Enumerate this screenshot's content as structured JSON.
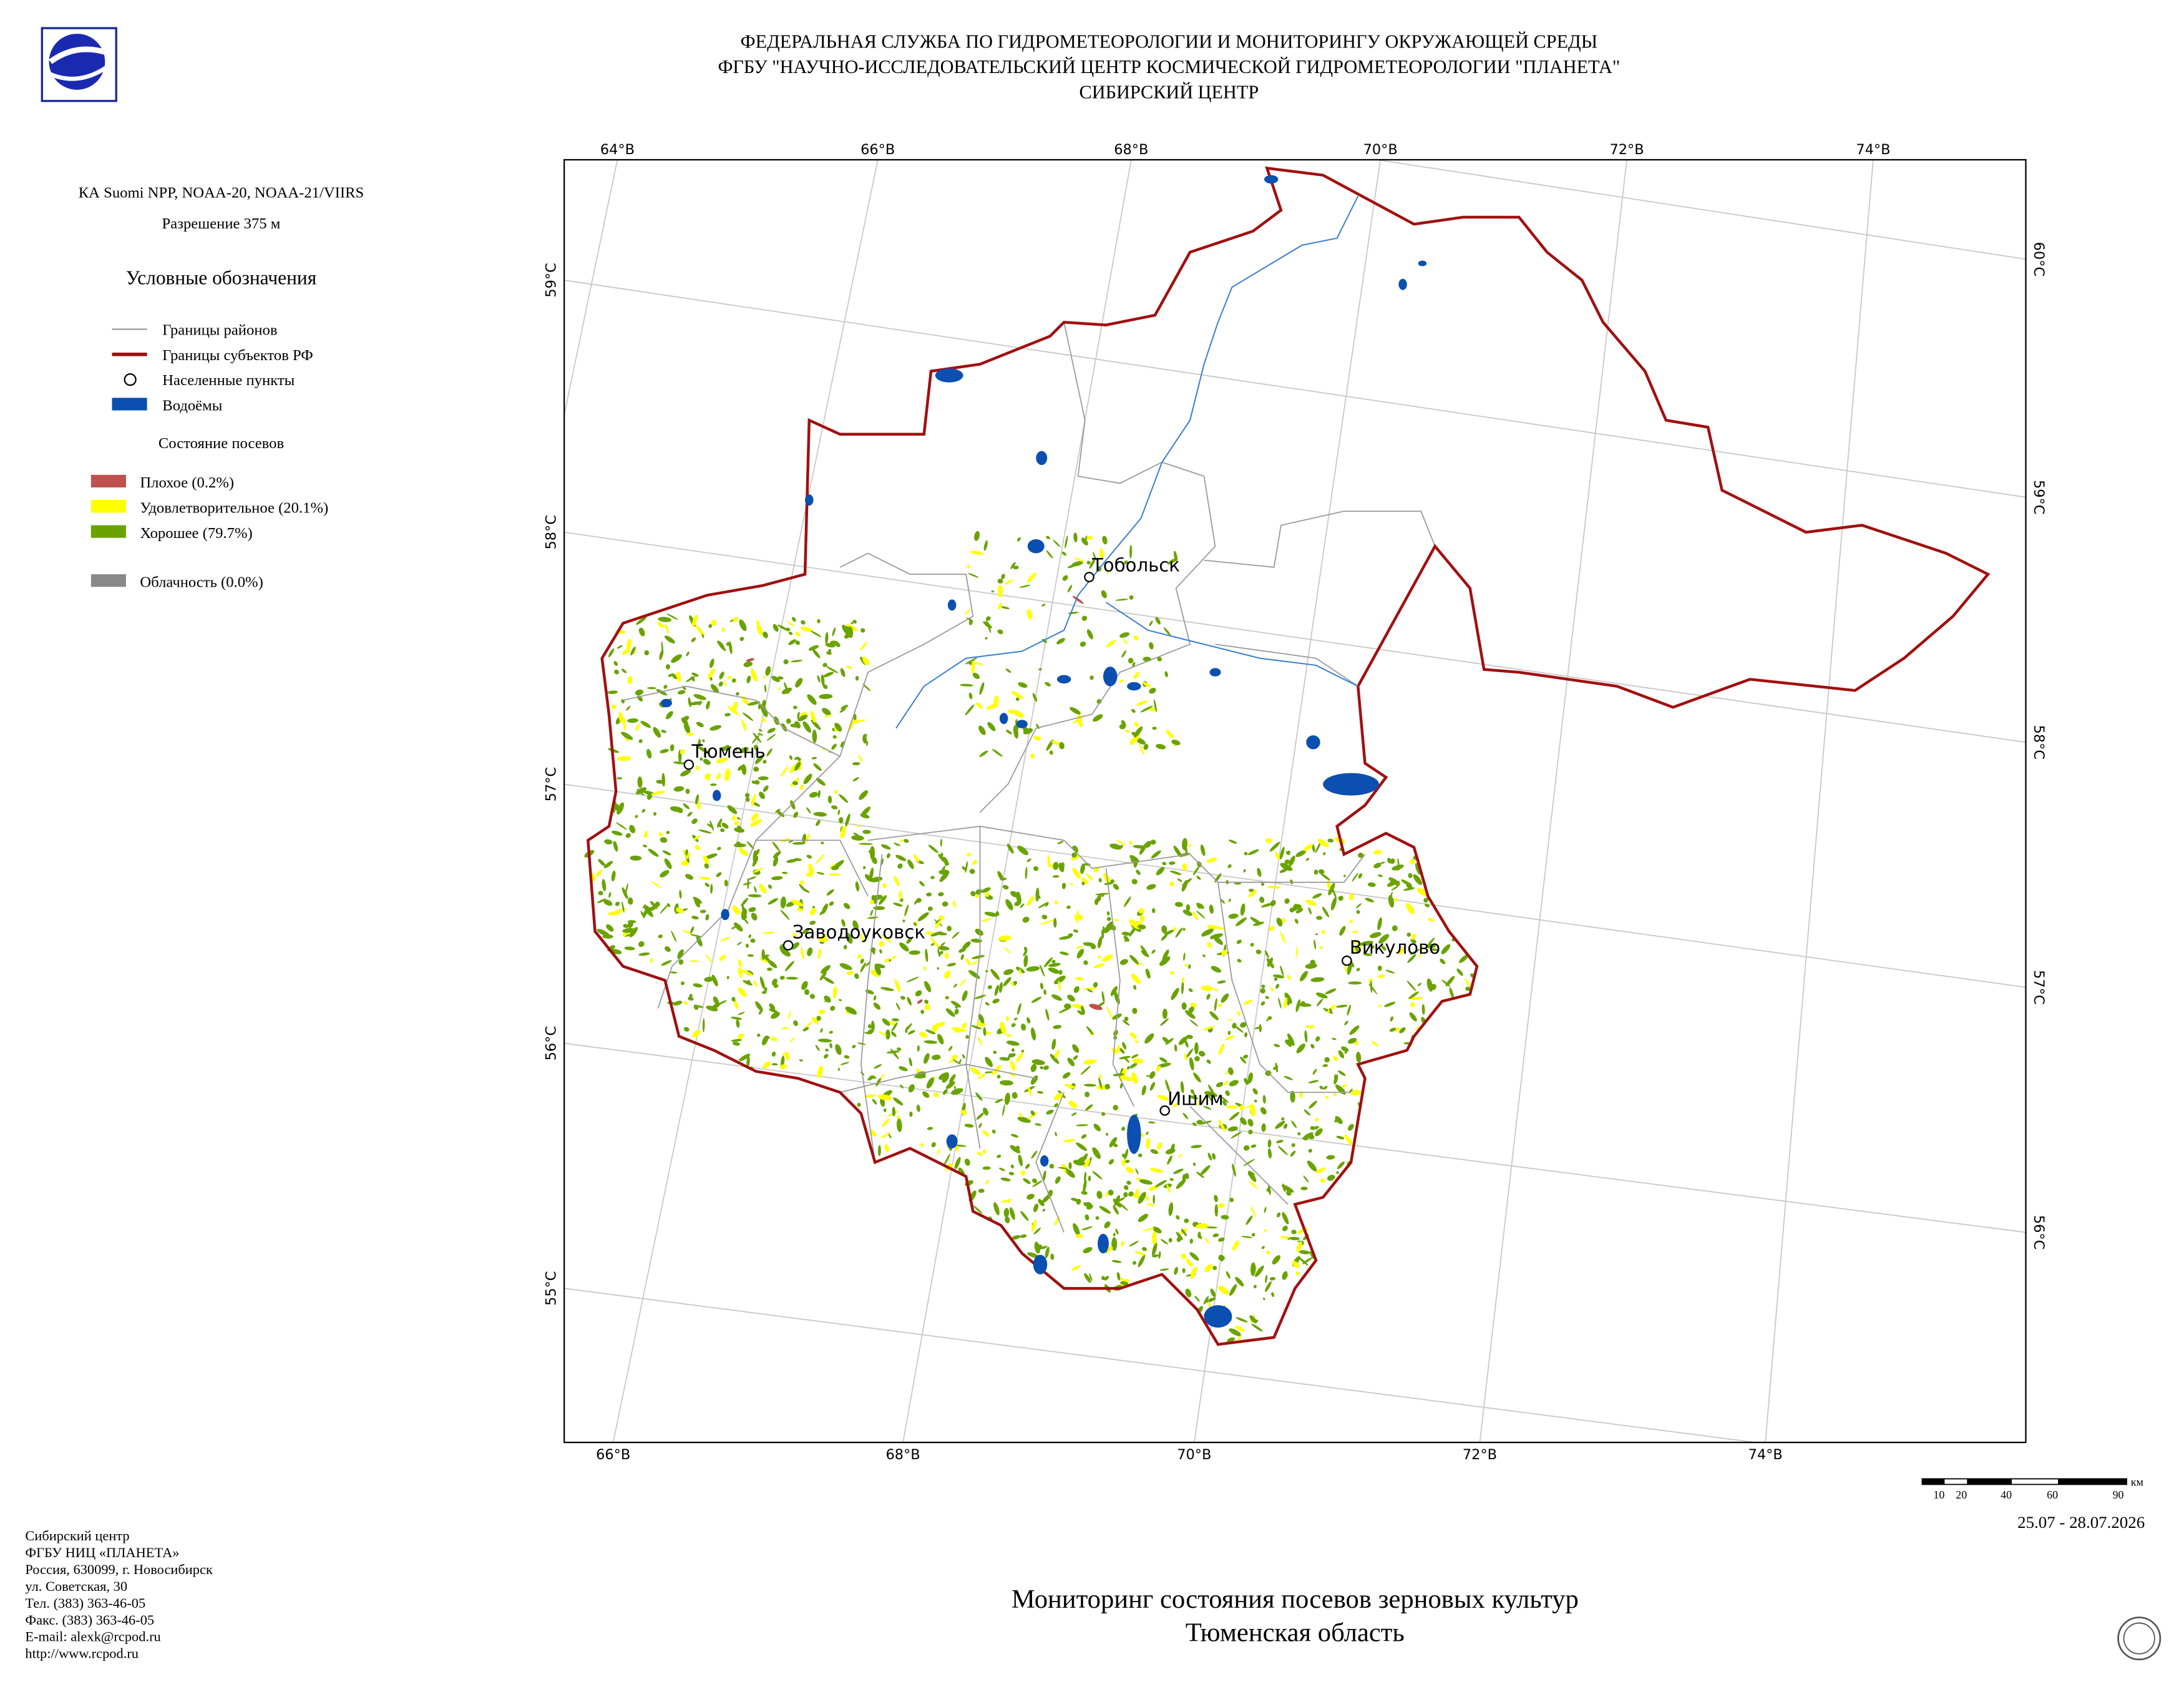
{
  "header": {
    "lines": [
      "ФЕДЕРАЛЬНАЯ СЛУЖБА ПО ГИДРОМЕТЕОРОЛОГИИ И МОНИТОРИНГУ ОКРУЖАЮЩЕЙ СРЕДЫ",
      "ФГБУ \"НАУЧНО-ИССЛЕДОВАТЕЛЬСКИЙ ЦЕНТР КОСМИЧЕСКОЙ ГИДРОМЕТЕОРОЛОГИИ \"ПЛАНЕТА\"",
      "СИБИРСКИЙ ЦЕНТР"
    ]
  },
  "sidebar": {
    "satellite": "КА Suomi NPP, NOAA-20, NOAA-21/VIIRS",
    "resolution": "Разрешение 375 м",
    "legend_title": "Условные обозначения",
    "layers": [
      "Границы районов",
      "Границы субъектов РФ",
      "Населенные пункты",
      "Водоёмы"
    ],
    "crops_title": "Состояние посевов",
    "crops": [
      "Плохое (0.2%)",
      "Удовлетворительное (20.1%)",
      "Хорошее (79.7%)"
    ],
    "cloud": "Облачность (0.0%)"
  },
  "map": {
    "top_labels": [
      "64°В",
      "66°В",
      "68°В",
      "70°В",
      "72°В",
      "74°В"
    ],
    "bottom_labels": [
      "66°В",
      "68°В",
      "70°В",
      "72°В",
      "74°В"
    ],
    "left_labels": [
      "59°С",
      "58°С",
      "57°С",
      "56°С",
      "55°С"
    ],
    "right_labels": [
      "60°С",
      "59°С",
      "58°С",
      "57°С",
      "56°С"
    ],
    "cities": [
      "Тобольск",
      "Тюмень",
      "Заводоуковск",
      "Викулово",
      "Ишим"
    ]
  },
  "scale": {
    "unit": "км",
    "labels": [
      "10",
      "20",
      "40",
      "60",
      "90"
    ]
  },
  "date": "25.07 - 28.07.2026",
  "footer": {
    "lines": [
      "Сибирский центр",
      "ФГБУ НИЦ «ПЛАНЕТА»",
      "Россия, 630099, г. Новосибирск",
      "ул. Советская, 30",
      "Тел. (383) 363-46-05",
      "Факс. (383) 363-46-05",
      "E-mail: alexk@rcpod.ru",
      "http://www.rcpod.ru"
    ]
  },
  "title": {
    "lines": [
      "Мониторинг состояния посевов зерновых культур",
      "Тюменская область"
    ]
  }
}
